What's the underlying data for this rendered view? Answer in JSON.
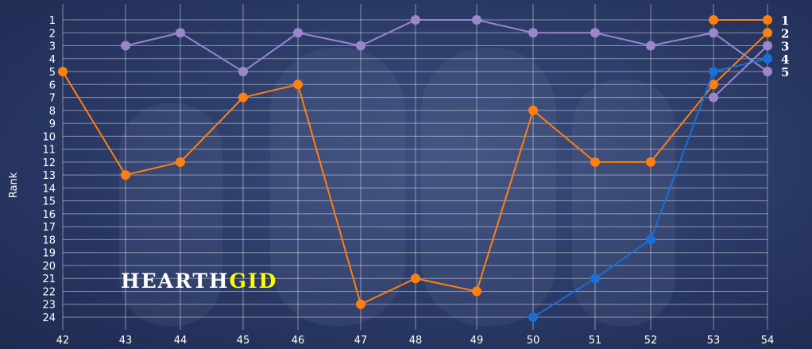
{
  "chart_data": {
    "type": "line",
    "title": "",
    "xlabel": "",
    "ylabel": "Rank",
    "x": [
      42,
      43,
      44,
      45,
      46,
      47,
      48,
      49,
      50,
      51,
      52,
      53,
      54
    ],
    "ylim": [
      24,
      1
    ],
    "y_reversed": true,
    "y_ticks": [
      1,
      2,
      3,
      4,
      5,
      6,
      7,
      8,
      9,
      10,
      11,
      12,
      13,
      14,
      15,
      16,
      17,
      18,
      19,
      20,
      21,
      22,
      23,
      24
    ],
    "grid": true,
    "series": [
      {
        "color": "#ff7f0e",
        "points": [
          [
            42,
            5
          ],
          [
            43,
            13
          ],
          [
            44,
            12
          ],
          [
            45,
            7
          ],
          [
            46,
            6
          ],
          [
            47,
            23
          ],
          [
            48,
            21
          ],
          [
            49,
            22
          ],
          [
            50,
            8
          ],
          [
            51,
            12
          ],
          [
            52,
            12
          ],
          [
            53,
            6
          ],
          [
            54,
            2
          ]
        ]
      },
      {
        "color": "#9b86cc",
        "points": [
          [
            43,
            3
          ],
          [
            44,
            2
          ],
          [
            45,
            5
          ],
          [
            46,
            2
          ],
          [
            47,
            3
          ],
          [
            48,
            1
          ],
          [
            49,
            1
          ],
          [
            50,
            2
          ],
          [
            51,
            2
          ],
          [
            52,
            3
          ],
          [
            53,
            2
          ],
          [
            54,
            5
          ]
        ]
      },
      {
        "color": "#1a6fd6",
        "points": [
          [
            50,
            24
          ],
          [
            51,
            21
          ],
          [
            52,
            18
          ],
          [
            53,
            5
          ],
          [
            54,
            4
          ]
        ]
      },
      {
        "color": "#ff7f0e",
        "points": [
          [
            53,
            1
          ],
          [
            54,
            1
          ]
        ]
      },
      {
        "color": "#9b86cc",
        "points": [
          [
            53,
            7
          ],
          [
            54,
            3
          ]
        ]
      }
    ],
    "right_labels": [
      "1",
      "2",
      "3",
      "4",
      "5"
    ]
  },
  "watermark": {
    "part1": "HEARTH",
    "part2": "GID",
    "color1": "#ffffff",
    "color2": "#ffff00"
  }
}
